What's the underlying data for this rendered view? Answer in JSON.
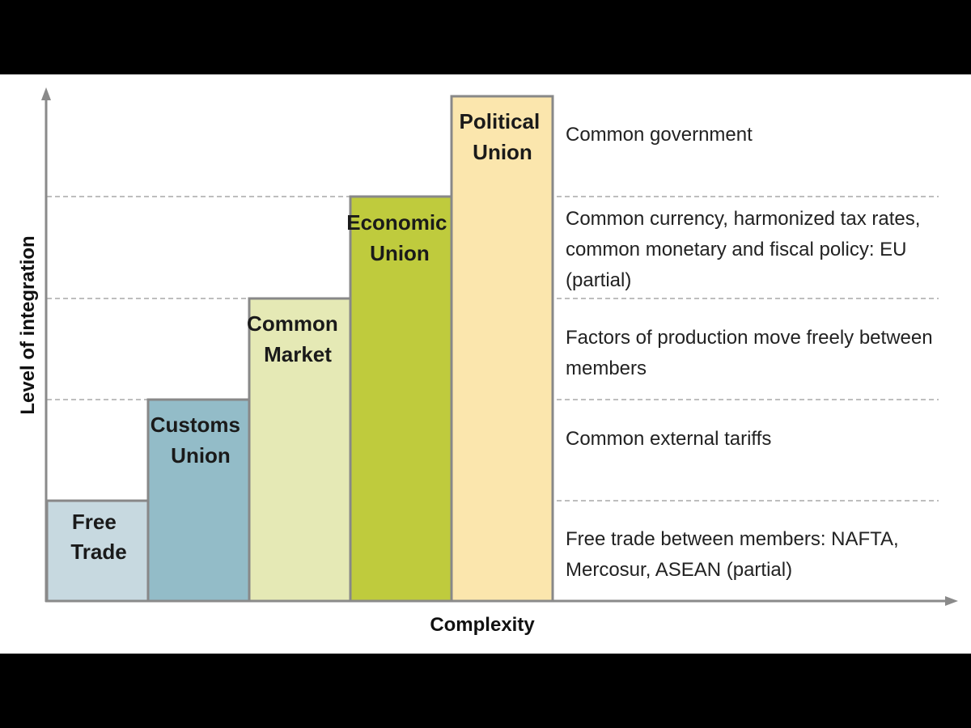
{
  "axes": {
    "x_label": "Complexity",
    "y_label": "Level of integration"
  },
  "stages": [
    {
      "label_lines": [
        "Free",
        "Trade"
      ],
      "color": "#c7d9e0",
      "description_lines": [
        "Free trade between members: NAFTA,",
        "Mercosur, ASEAN (partial)"
      ]
    },
    {
      "label_lines": [
        "Customs",
        "Union"
      ],
      "color": "#93bcc8",
      "description_lines": [
        "Common external tariffs"
      ]
    },
    {
      "label_lines": [
        "Common",
        "Market"
      ],
      "color": "#e5e9b5",
      "description_lines": [
        "Factors of production move freely between",
        "members"
      ]
    },
    {
      "label_lines": [
        "Economic",
        "Union"
      ],
      "color": "#bfcb3d",
      "description_lines": [
        "Common currency, harmonized tax rates,",
        "common monetary and fiscal policy: EU",
        "(partial)"
      ]
    },
    {
      "label_lines": [
        "Political",
        "Union"
      ],
      "color": "#fbe6ad",
      "description_lines": [
        "Common government"
      ]
    }
  ],
  "colors": {
    "axis": "#8a8a8a",
    "bar_border": "#888888",
    "dashed_line": "#a8a8a8"
  }
}
